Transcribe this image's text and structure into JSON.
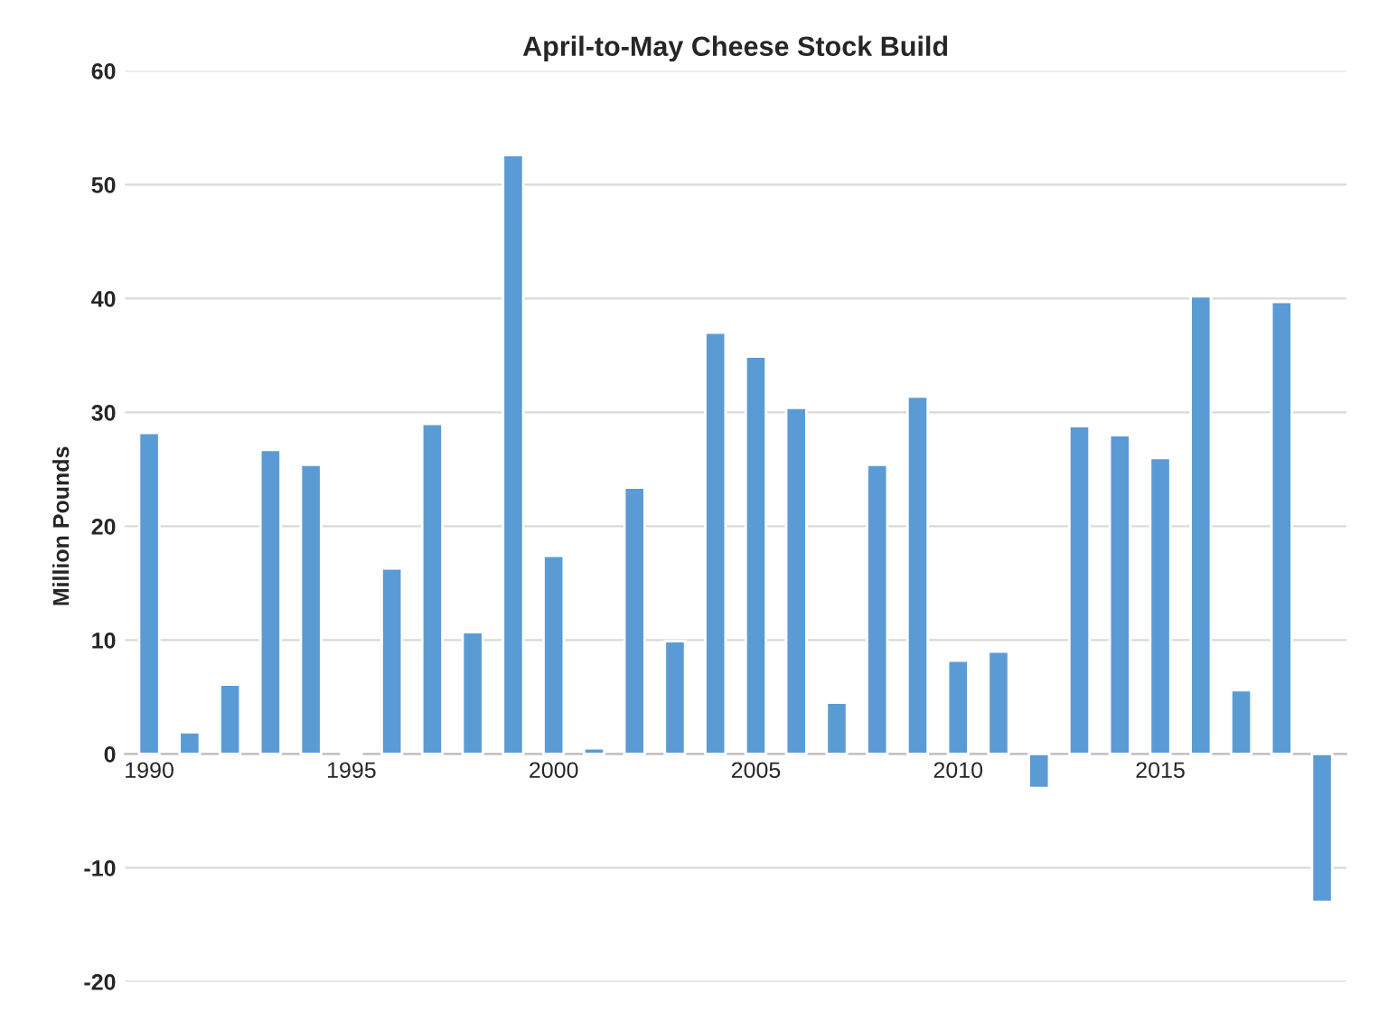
{
  "chart_data": {
    "type": "bar",
    "title": "April-to-May Cheese Stock Build",
    "ylabel": "Million Pounds",
    "categories": [
      "1990",
      null,
      null,
      null,
      null,
      "1995",
      null,
      null,
      null,
      null,
      "2000",
      null,
      null,
      null,
      null,
      "2005",
      null,
      null,
      null,
      null,
      "2010",
      null,
      null,
      null,
      null,
      "2015",
      null,
      null,
      null,
      null
    ],
    "values": [
      28.2,
      1.9,
      6.1,
      26.7,
      25.4,
      -0.2,
      16.3,
      29.0,
      10.7,
      52.6,
      17.4,
      0.5,
      23.4,
      9.9,
      37.0,
      34.9,
      30.4,
      4.5,
      25.4,
      31.4,
      8.2,
      9.0,
      -3.0,
      28.8,
      28.0,
      26.0,
      40.2,
      5.6,
      39.7,
      -13.0
    ],
    "color": "#5b9bd5",
    "ylim": [
      -20,
      60
    ],
    "yticks": [
      -20,
      -10,
      0,
      10,
      20,
      30,
      40,
      50,
      60
    ],
    "grid": "y"
  }
}
